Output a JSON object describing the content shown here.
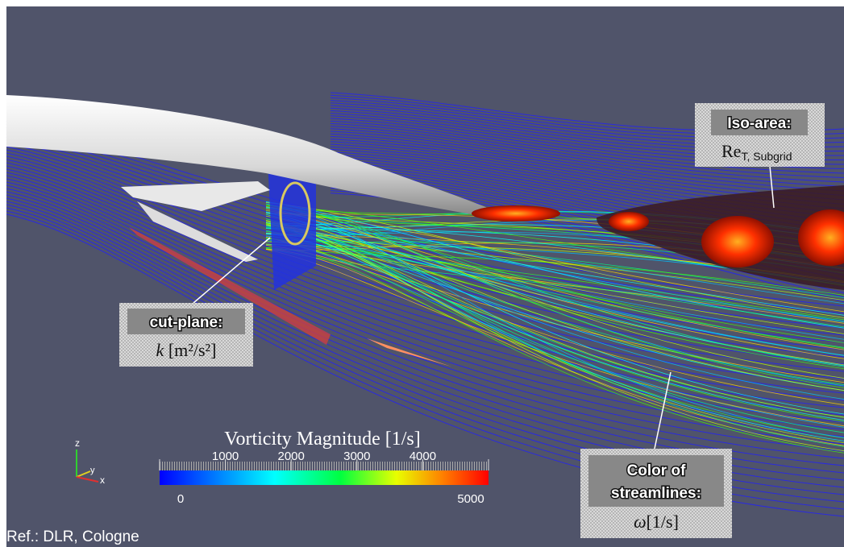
{
  "annotations": {
    "iso_area": {
      "title": "Iso-area:",
      "symbol": "Re",
      "subscript": "T, Subgrid"
    },
    "cut_plane": {
      "title": "cut-plane:",
      "symbol": "k",
      "unit": "[m²/s²]"
    },
    "streamline_color": {
      "title_line1": "Color of",
      "title_line2": "streamlines:",
      "symbol": "ω",
      "unit": "[1/s]"
    }
  },
  "colorbar": {
    "title": "Vorticity Magnitude [1/s]",
    "range": [
      0,
      5000
    ],
    "ticks": [
      0,
      1000,
      2000,
      3000,
      4000,
      5000
    ]
  },
  "axes_triad": {
    "z": "z",
    "y": "y",
    "x": "x"
  },
  "reference": "Ref.: DLR, Cologne"
}
